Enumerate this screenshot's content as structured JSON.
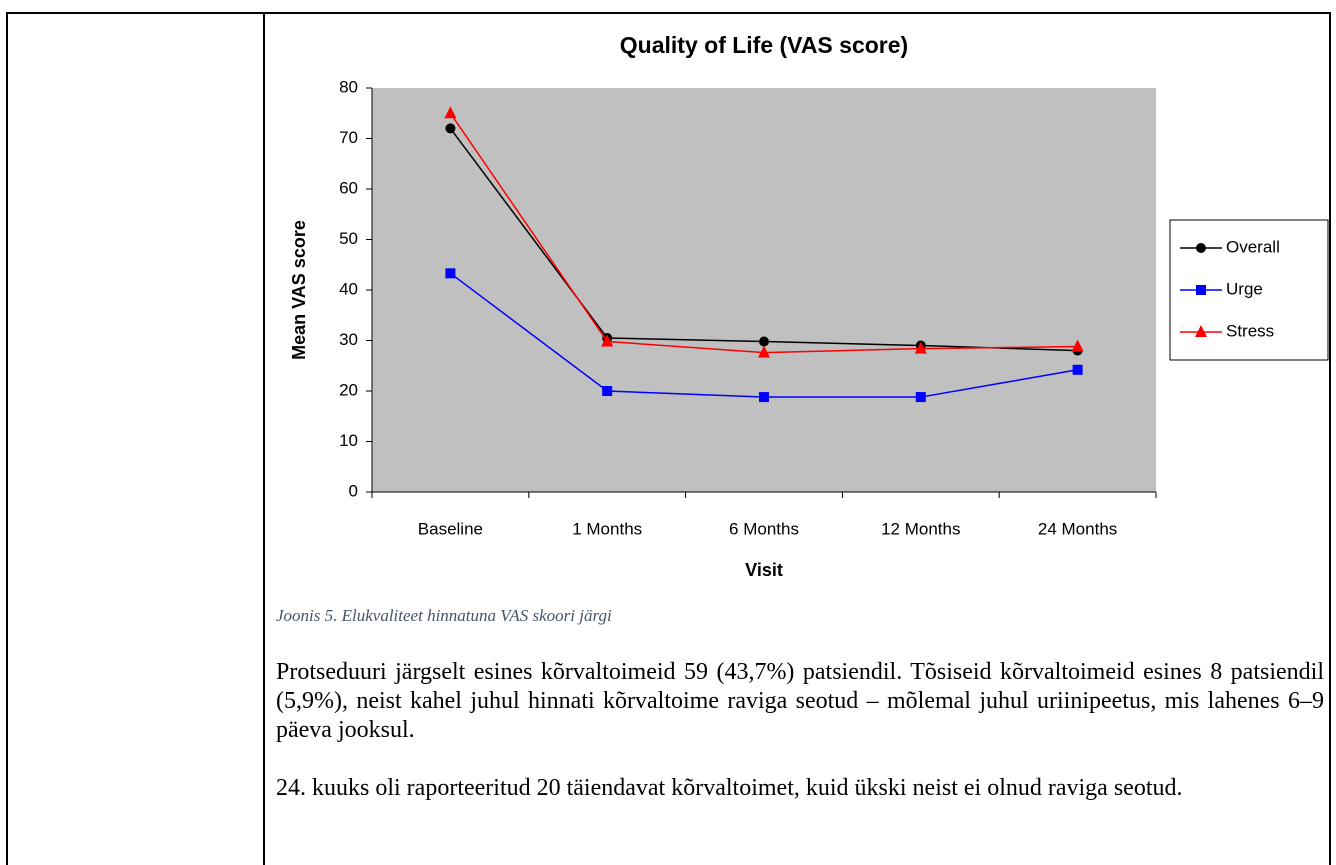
{
  "chart_data": {
    "type": "line",
    "title": "Quality of Life (VAS score)",
    "x_label": "Visit",
    "y_label": "Mean VAS score",
    "categories": [
      "Baseline",
      "1 Months",
      "6 Months",
      "12 Months",
      "24 Months"
    ],
    "series": [
      {
        "name": "Overall",
        "color": "#000000",
        "marker": "circle",
        "values": [
          72,
          30.5,
          29.8,
          29,
          28
        ]
      },
      {
        "name": "Urge",
        "color": "#0000ff",
        "marker": "square",
        "values": [
          43.3,
          20,
          18.8,
          18.8,
          24.2
        ]
      },
      {
        "name": "Stress",
        "color": "#ff0000",
        "marker": "triangle",
        "values": [
          75,
          29.8,
          27.6,
          28.4,
          28.8
        ]
      }
    ],
    "ylim": [
      0,
      80
    ],
    "yticks": [
      0,
      10,
      20,
      30,
      40,
      50,
      60,
      70,
      80
    ],
    "legend": "right",
    "plot_background": "#c0c0c0"
  },
  "caption": "Joonis 5. Elukvaliteet hinnatuna VAS skoori järgi",
  "paragraphs": [
    "Protseduuri järgselt esines kõrvaltoimeid 59 (43,7%) patsiendil. Tõsiseid kõrvaltoimeid esines 8 patsiendil (5,9%), neist kahel juhul hinnati kõrvaltoime raviga seotud – mõlemal juhul uriinipeetus, mis lahenes 6–9 päeva jooksul.",
    "24. kuuks oli raporteeritud 20 täiendavat kõrvaltoimet, kuid ükski neist ei olnud raviga seotud."
  ]
}
